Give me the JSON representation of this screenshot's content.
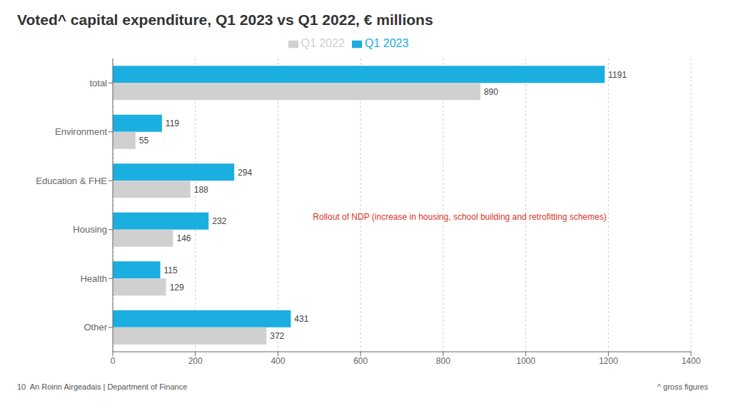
{
  "chart_data": {
    "type": "bar",
    "orientation": "horizontal",
    "title": "Voted^ capital expenditure, Q1 2023 vs Q1 2022, € millions",
    "categories": [
      "total",
      "Environment",
      "Education & FHE",
      "Housing",
      "Health",
      "Other"
    ],
    "series": [
      {
        "name": "Q1 2023",
        "color": "#1BAEE0",
        "values": [
          1191,
          119,
          294,
          232,
          115,
          431
        ]
      },
      {
        "name": "Q1 2022",
        "color": "#D0D0D0",
        "values": [
          890,
          55,
          188,
          146,
          129,
          372
        ]
      }
    ],
    "xlim": [
      0,
      1400
    ],
    "xticks": [
      0,
      200,
      400,
      600,
      800,
      1000,
      1200,
      1400
    ],
    "grid": true,
    "legend": "top",
    "data_labels": true,
    "annotations": [
      "Rollout of NDP (increase in housing, school building and retrofitting schemes)",
      "10  An Roinn Airgeadais | Department of Finance",
      "^ gross figures"
    ]
  }
}
